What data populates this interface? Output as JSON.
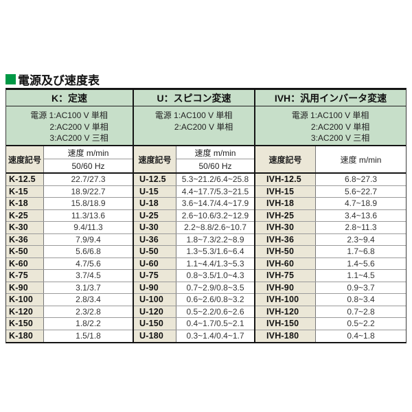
{
  "page": {
    "title": "電源及び速度表",
    "title_square_color": "#009845"
  },
  "colors": {
    "header_green": "#c7dfc9",
    "code_beige": "#ebe7d7",
    "border_dark": "#141414",
    "row_line_gray": "#9a9a9a"
  },
  "sections": [
    {
      "id": "K",
      "header": "K：定速",
      "power_lines": [
        "電源 1:AC100 V 単相",
        "2:AC200 V 単相",
        "3:AC200 V 三相"
      ],
      "sub": {
        "code": "速度記号",
        "line1": "速度 m/min",
        "line2": "50/60 Hz"
      },
      "rows": [
        {
          "code": "K-12.5",
          "speed": "22.7/27.3"
        },
        {
          "code": "K-15",
          "speed": "18.9/22.7"
        },
        {
          "code": "K-18",
          "speed": "15.8/18.9"
        },
        {
          "code": "K-25",
          "speed": "11.3/13.6"
        },
        {
          "code": "K-30",
          "speed": "9.4/11.3"
        },
        {
          "code": "K-36",
          "speed": "7.9/9.4"
        },
        {
          "code": "K-50",
          "speed": "5.6/6.8"
        },
        {
          "code": "K-60",
          "speed": "4.7/5.6"
        },
        {
          "code": "K-75",
          "speed": "3.7/4.5"
        },
        {
          "code": "K-90",
          "speed": "3.1/3.7"
        },
        {
          "code": "K-100",
          "speed": "2.8/3.4"
        },
        {
          "code": "K-120",
          "speed": "2.3/2.8"
        },
        {
          "code": "K-150",
          "speed": "1.8/2.2"
        },
        {
          "code": "K-180",
          "speed": "1.5/1.8"
        }
      ]
    },
    {
      "id": "U",
      "header": "U：スピコン変速",
      "power_lines": [
        "電源 1:AC100 V 単相",
        "2:AC200 V 単相"
      ],
      "sub": {
        "code": "速度記号",
        "line1": "速度 m/min",
        "line2": "50/60 Hz"
      },
      "rows": [
        {
          "code": "U-12.5",
          "speed": "5.3~21.2/6.4~25.8"
        },
        {
          "code": "U-15",
          "speed": "4.4~17.7/5.3~21.5"
        },
        {
          "code": "U-18",
          "speed": "3.6~14.7/4.4~17.9"
        },
        {
          "code": "U-25",
          "speed": "2.6~10.6/3.2~12.9"
        },
        {
          "code": "U-30",
          "speed": "2.2~8.8/2.6~10.7"
        },
        {
          "code": "U-36",
          "speed": "1.8~7.3/2.2~8.9"
        },
        {
          "code": "U-50",
          "speed": "1.3~5.3/1.6~6.4"
        },
        {
          "code": "U-60",
          "speed": "1.1~4.4/1.3~5.3"
        },
        {
          "code": "U-75",
          "speed": "0.8~3.5/1.0~4.3"
        },
        {
          "code": "U-90",
          "speed": "0.7~2.9/0.8~3.5"
        },
        {
          "code": "U-100",
          "speed": "0.6~2.6/0.8~3.2"
        },
        {
          "code": "U-120",
          "speed": "0.5~2.2/0.6~2.6"
        },
        {
          "code": "U-150",
          "speed": "0.4~1.7/0.5~2.1"
        },
        {
          "code": "U-180",
          "speed": "0.3~1.4/0.4~1.7"
        }
      ]
    },
    {
      "id": "IVH",
      "header": "IVH：汎用インバータ変速",
      "power_lines": [
        "電源 1:AC100 V 単相",
        "2:AC200 V 単相",
        "3:AC200 V 三相"
      ],
      "sub": {
        "code": "速度記号",
        "line1": "速度 m/min",
        "line2": null
      },
      "rows": [
        {
          "code": "IVH-12.5",
          "speed": "6.8~27.3"
        },
        {
          "code": "IVH-15",
          "speed": "5.6~22.7"
        },
        {
          "code": "IVH-18",
          "speed": "4.7~18.9"
        },
        {
          "code": "IVH-25",
          "speed": "3.4~13.6"
        },
        {
          "code": "IVH-30",
          "speed": "2.8~11.3"
        },
        {
          "code": "IVH-36",
          "speed": "2.3~9.4"
        },
        {
          "code": "IVH-50",
          "speed": "1.7~6.8"
        },
        {
          "code": "IVH-60",
          "speed": "1.4~5.6"
        },
        {
          "code": "IVH-75",
          "speed": "1.1~4.5"
        },
        {
          "code": "IVH-90",
          "speed": "0.9~3.7"
        },
        {
          "code": "IVH-100",
          "speed": "0.8~3.4"
        },
        {
          "code": "IVH-120",
          "speed": "0.7~2.8"
        },
        {
          "code": "IVH-150",
          "speed": "0.5~2.2"
        },
        {
          "code": "IVH-180",
          "speed": "0.4~1.8"
        }
      ]
    }
  ]
}
